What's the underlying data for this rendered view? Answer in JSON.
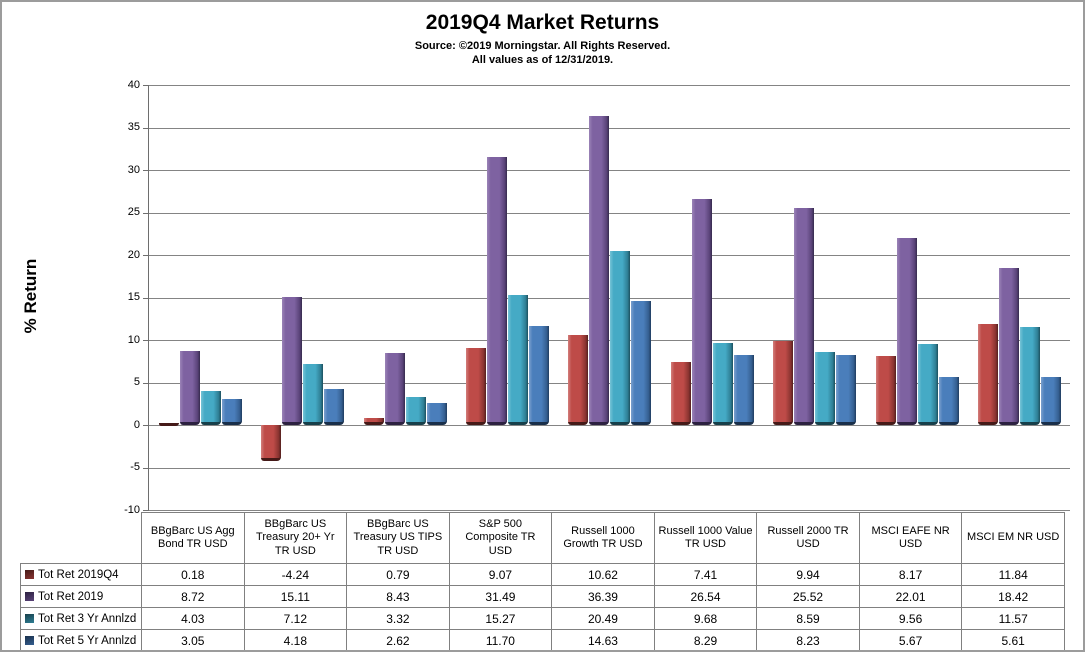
{
  "header": {
    "title": "2019Q4 Market Returns",
    "source_line": "Source: ©2019 Morningstar. All Rights Reserved.",
    "asof_line": "All values as of 12/31/2019."
  },
  "y_axis": {
    "label": "% Return",
    "min": -10,
    "max": 40,
    "tick_step": 5,
    "ticks": [
      40,
      35,
      30,
      25,
      20,
      15,
      10,
      5,
      0,
      -5,
      -10
    ]
  },
  "colors": {
    "gridline": "#848484",
    "axis_line": "#6e6e6e",
    "outer_border": "#9c9c9c",
    "table_border": "#808080"
  },
  "chart_data": {
    "type": "bar",
    "title": "2019Q4 Market Returns",
    "subtitle": [
      "Source: ©2019 Morningstar. All Rights Reserved.",
      "All values as of 12/31/2019."
    ],
    "xlabel": "",
    "ylabel": "% Return",
    "ylim": [
      -10,
      40
    ],
    "ytick_step": 5,
    "grid": true,
    "legend_position": "table-rows-left",
    "categories": [
      "BBgBarc US Agg Bond TR USD",
      "BBgBarc US Treasury 20+ Yr TR USD",
      "BBgBarc US Treasury US TIPS TR USD",
      "S&P 500 Composite TR USD",
      "Russell 1000 Growth TR USD",
      "Russell 1000 Value TR USD",
      "Russell 2000 TR USD",
      "MSCI EAFE NR USD",
      "MSCI EM NR USD"
    ],
    "series": [
      {
        "name": "Tot Ret 2019Q4",
        "color": "#be4b48",
        "color_light": "#d37e7b",
        "color_dark": "#8a3431",
        "color_edge": "#53201e",
        "color_cap": "#451a18",
        "values": [
          0.18,
          -4.24,
          0.79,
          9.07,
          10.62,
          7.41,
          9.94,
          8.17,
          11.84
        ]
      },
      {
        "name": "Tot Ret 2019",
        "color": "#7e62a1",
        "color_light": "#9b84b7",
        "color_dark": "#5a4379",
        "color_edge": "#352a4d",
        "color_cap": "#2c2140",
        "values": [
          8.72,
          15.11,
          8.43,
          31.49,
          36.39,
          26.54,
          25.52,
          22.01,
          18.42
        ]
      },
      {
        "name": "Tot Ret 3 Yr Annlzd",
        "color": "#45aac5",
        "color_light": "#76c3d6",
        "color_dark": "#2f7f95",
        "color_edge": "#1c505e",
        "color_cap": "#173f4a",
        "values": [
          4.03,
          7.12,
          3.32,
          15.27,
          20.49,
          9.68,
          8.59,
          9.56,
          11.57
        ]
      },
      {
        "name": "Tot Ret 5 Yr Annlzd",
        "color": "#4a7ebb",
        "color_light": "#7ba0ce",
        "color_dark": "#355f91",
        "color_edge": "#1f3c5f",
        "color_cap": "#192f4a",
        "values": [
          3.05,
          4.18,
          2.62,
          11.7,
          14.63,
          8.29,
          8.23,
          5.67,
          5.61
        ]
      }
    ]
  }
}
